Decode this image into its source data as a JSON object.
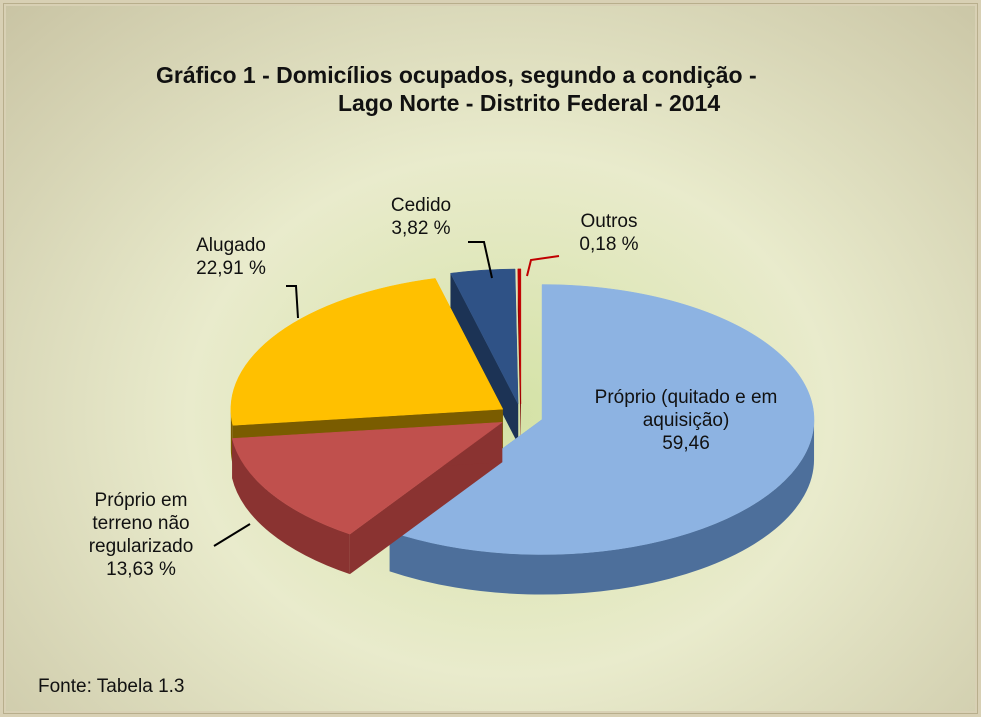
{
  "chart_data": {
    "type": "pie3d",
    "title": [
      "Gráfico 1 - Domicílios ocupados, segundo a condição -",
      "Lago Norte - Distrito Federal - 2014"
    ],
    "categories": [
      "Próprio (quitado e em aquisição)",
      "Próprio em terreno não regularizado",
      "Alugado",
      "Cedido",
      "Outros"
    ],
    "values": [
      59.46,
      13.63,
      22.91,
      3.82,
      0.18
    ],
    "value_labels": [
      "59,46",
      "13,63 %",
      "22,91 %",
      "3,82 %",
      "0,18 %"
    ],
    "colors": [
      "#8db3e2",
      "#c0504d",
      "#ffc000",
      "#2f5286",
      "#c00000"
    ],
    "side_colors": [
      "#4d6f9b",
      "#8a3331",
      "#7a5c00",
      "#1c3355",
      "#7a0000"
    ],
    "footnote": "Fonte: Tabela 1.3"
  }
}
